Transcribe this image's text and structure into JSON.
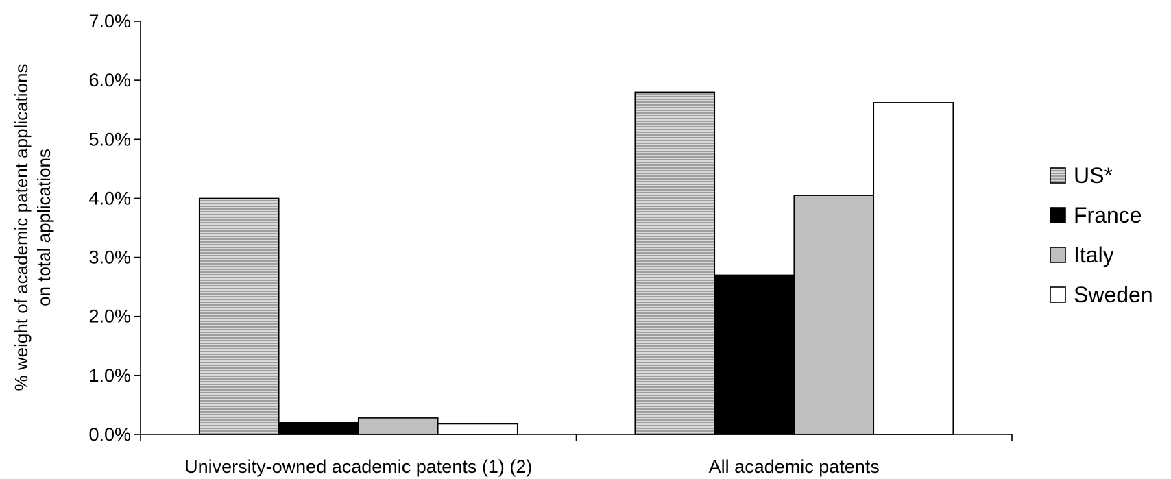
{
  "chart_data": {
    "type": "bar",
    "title": "",
    "xlabel": "",
    "ylabel_lines": [
      "% weight of academic patent applications",
      "on total applications"
    ],
    "categories": [
      "University-owned academic patents (1) (2)",
      "All academic patents"
    ],
    "series": [
      {
        "name": "US*",
        "values": [
          0.04,
          0.058
        ],
        "fill": "hatched-gray"
      },
      {
        "name": "France",
        "values": [
          0.002,
          0.027
        ],
        "fill": "#000000"
      },
      {
        "name": "Italy",
        "values": [
          0.0028,
          0.0405
        ],
        "fill": "#bfbfbf"
      },
      {
        "name": "Sweden",
        "values": [
          0.0018,
          0.0562
        ],
        "fill": "#ffffff"
      }
    ],
    "ylim": [
      0,
      0.07
    ],
    "yticks": [
      0,
      0.01,
      0.02,
      0.03,
      0.04,
      0.05,
      0.06,
      0.07
    ],
    "ytick_labels": [
      "0.0%",
      "1.0%",
      "2.0%",
      "3.0%",
      "4.0%",
      "5.0%",
      "6.0%",
      "7.0%"
    ],
    "grid": false,
    "legend_position": "right"
  }
}
